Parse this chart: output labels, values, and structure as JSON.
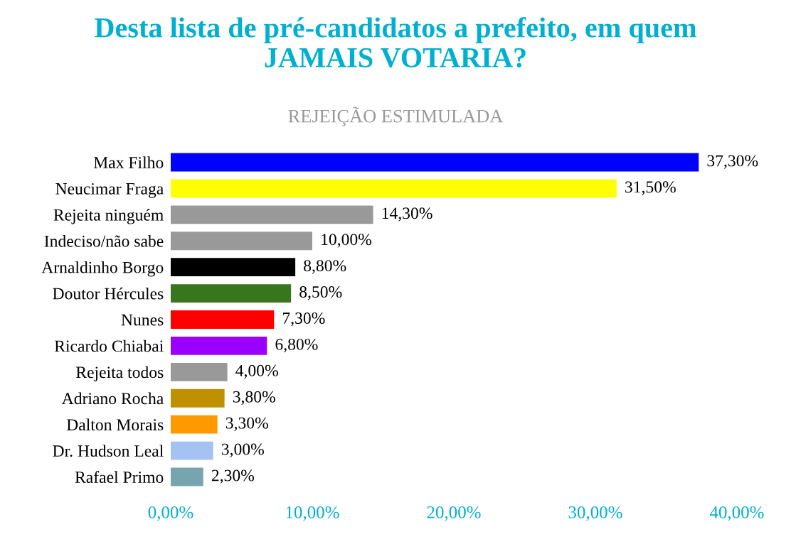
{
  "chart_data": {
    "type": "bar",
    "orientation": "horizontal",
    "title": "Desta lista de pré-candidatos a prefeito, em quem\nJAMAIS VOTARIA?",
    "subtitle": "REJEIÇÃO ESTIMULADA",
    "categories": [
      "Max Filho",
      "Neucimar Fraga",
      "Rejeita ninguém",
      "Indeciso/não sabe",
      "Arnaldinho Borgo",
      "Doutor Hércules",
      "Nunes",
      "Ricardo Chiabai",
      "Rejeita todos",
      "Adriano Rocha",
      "Dalton Morais",
      "Dr. Hudson Leal",
      "Rafael Primo"
    ],
    "values": [
      37.3,
      31.5,
      14.3,
      10.0,
      8.8,
      8.5,
      7.3,
      6.8,
      4.0,
      3.8,
      3.3,
      3.0,
      2.3
    ],
    "value_labels": [
      "37,30%",
      "31,50%",
      "14,30%",
      "10,00%",
      "8,80%",
      "8,50%",
      "7,30%",
      "6,80%",
      "4,00%",
      "3,80%",
      "3,30%",
      "3,00%",
      "2,30%"
    ],
    "colors": [
      "#0000ff",
      "#ffff00",
      "#999999",
      "#999999",
      "#000000",
      "#38761d",
      "#ff0000",
      "#9900ff",
      "#999999",
      "#bf9000",
      "#ff9900",
      "#a4c2f4",
      "#76a5af"
    ],
    "xlim": [
      0,
      40
    ],
    "xticks": [
      {
        "value": 0,
        "label": "0,00%"
      },
      {
        "value": 10,
        "label": "10,00%"
      },
      {
        "value": 20,
        "label": "20,00%"
      },
      {
        "value": 30,
        "label": "30,00%"
      },
      {
        "value": 40,
        "label": "40,00%"
      }
    ],
    "grid": false,
    "legend": false
  }
}
